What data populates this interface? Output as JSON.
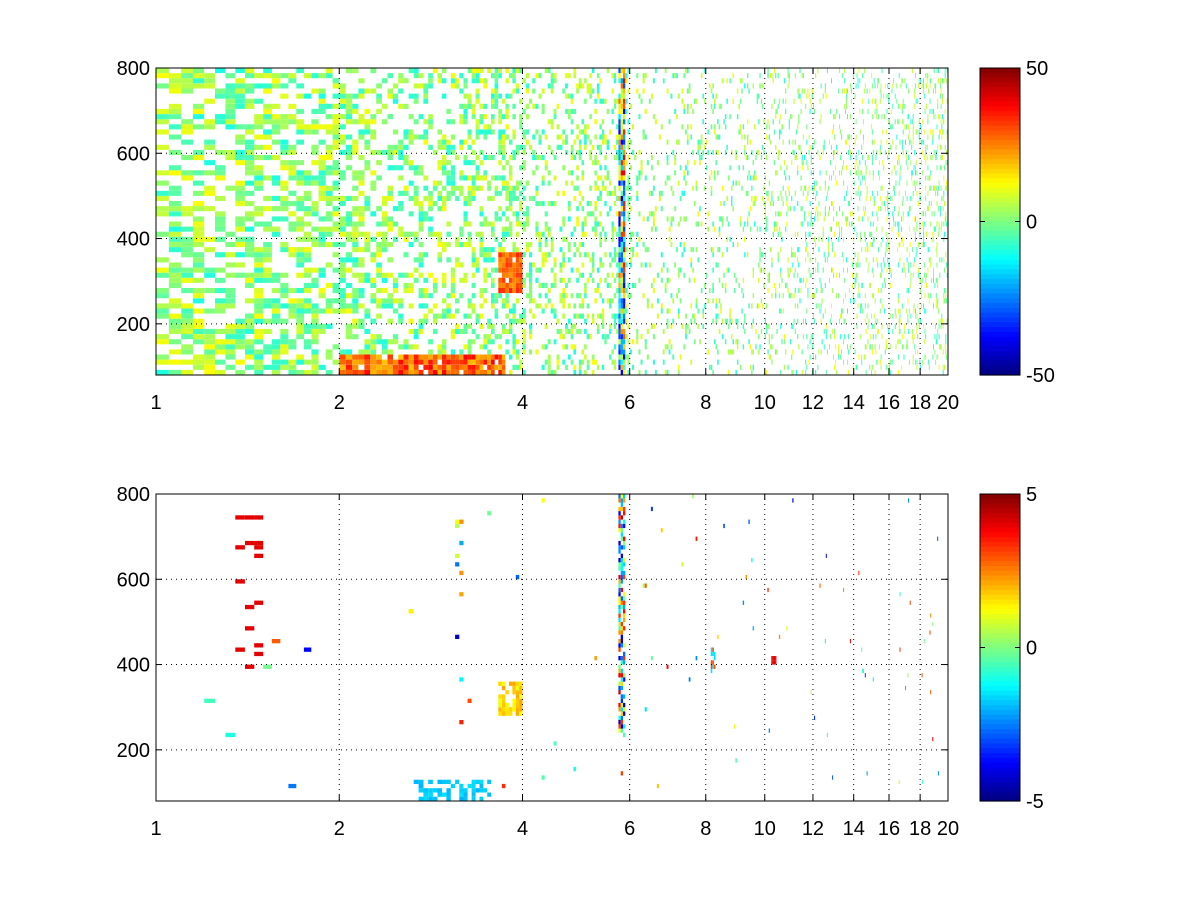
{
  "chart_data": [
    {
      "type": "heatmap",
      "title": "",
      "xlabel": "",
      "ylabel": "",
      "xlim": [
        1,
        20
      ],
      "ylim": [
        80,
        800
      ],
      "x_scale": "log",
      "grid": true,
      "colormap": "jet",
      "x_ticks": [
        1,
        2,
        4,
        6,
        8,
        10,
        12,
        14,
        16,
        18,
        20
      ],
      "x_tick_labels": [
        "1",
        "2",
        "4",
        "6",
        "8",
        "10",
        "12",
        "14",
        "16",
        "18",
        "20"
      ],
      "y_ticks": [
        200,
        400,
        600,
        800
      ],
      "y_tick_labels": [
        "200",
        "400",
        "600",
        "800"
      ],
      "colorbar": {
        "range": [
          -50,
          50
        ],
        "tick_values": [
          50,
          0,
          -50
        ],
        "tick_labels": [
          "50",
          "0",
          "-50"
        ]
      },
      "data_description": "sparse field of scattered cells; dense near x=1–2.2 (yellow/green); hot spot about (3.8, 300) ~+30; band at x=5.8 with values -40..+30; strong low-y band x=2–3.6, y<120 ~+35",
      "features": [
        {
          "x": 3.8,
          "y": 300,
          "value": 30
        },
        {
          "x": 2.9,
          "y": 90,
          "value": 35
        },
        {
          "x": 5.8,
          "y": 650,
          "value": -40
        },
        {
          "x": 5.8,
          "y": 280,
          "value": 25
        },
        {
          "x": 1.5,
          "y": 500,
          "value": 10
        },
        {
          "x": 10.3,
          "y": 350,
          "value": -15
        }
      ]
    },
    {
      "type": "heatmap",
      "title": "",
      "xlabel": "",
      "ylabel": "",
      "xlim": [
        1,
        20
      ],
      "ylim": [
        80,
        800
      ],
      "x_scale": "log",
      "grid": true,
      "colormap": "jet",
      "x_ticks": [
        1,
        2,
        4,
        6,
        8,
        10,
        12,
        14,
        16,
        18,
        20
      ],
      "x_tick_labels": [
        "1",
        "2",
        "4",
        "6",
        "8",
        "10",
        "12",
        "14",
        "16",
        "18",
        "20"
      ],
      "y_ticks": [
        200,
        400,
        600,
        800
      ],
      "y_tick_labels": [
        "200",
        "400",
        "600",
        "800"
      ],
      "colorbar": {
        "range": [
          -5,
          5
        ],
        "tick_values": [
          5,
          0,
          -5
        ],
        "tick_labels": [
          "5",
          "0",
          "-5"
        ]
      },
      "data_description": "mostly empty; isolated cells; yellow streak x=3.6–3.9, y 280–360 ~+1.5; band at x=5.8, y 230–800 mixed -4..+4; cyan band x=2.7–3.4 at y<130 ~-1.5",
      "features": [
        {
          "x": 3.75,
          "y": 320,
          "value": 1.5
        },
        {
          "x": 5.8,
          "y": 500,
          "value": 3
        },
        {
          "x": 5.8,
          "y": 760,
          "value": -4
        },
        {
          "x": 3.0,
          "y": 95,
          "value": -1.5
        },
        {
          "x": 8.15,
          "y": 390,
          "value": 3
        },
        {
          "x": 10.3,
          "y": 405,
          "value": 4
        }
      ]
    }
  ]
}
